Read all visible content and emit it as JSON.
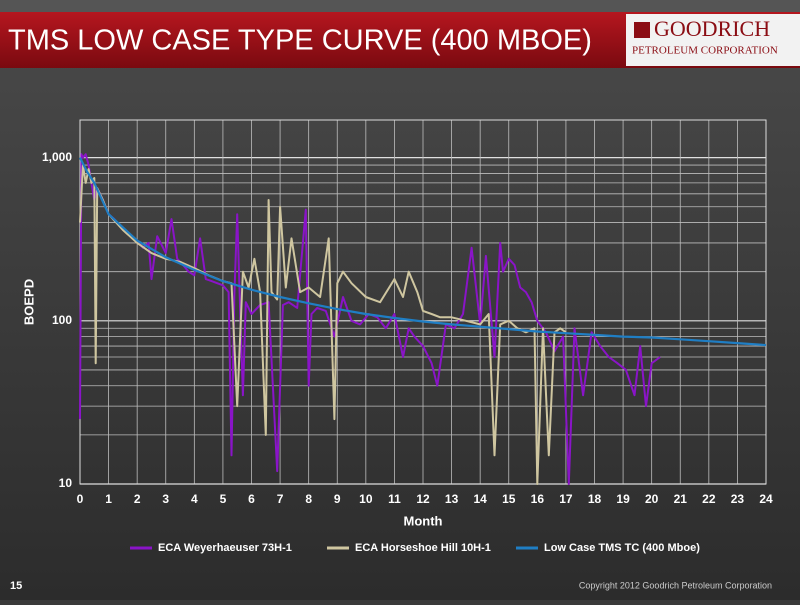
{
  "slide": {
    "title": "TMS LOW CASE TYPE CURVE (400 MBOE)",
    "logo_name": "GOODRICH",
    "logo_sub": "PETROLEUM CORPORATION",
    "page_number": "15",
    "copyright": "Copyright 2012 Goodrich Petroleum Corporation"
  },
  "chart_data": {
    "type": "line",
    "x_label": "Month",
    "y_label": "BOEPD",
    "log_y": true,
    "grid": true,
    "legend": "bottom",
    "xlim": [
      0,
      24
    ],
    "xticks": [
      0,
      1,
      2,
      3,
      4,
      5,
      6,
      7,
      8,
      9,
      10,
      11,
      12,
      13,
      14,
      15,
      16,
      17,
      18,
      19,
      20,
      21,
      22,
      23,
      24
    ],
    "ylim": [
      10,
      1700
    ],
    "yticks": [
      10,
      100,
      {
        "value": 1000,
        "label": "1,000"
      }
    ],
    "minor_yticks": [
      20,
      30,
      40,
      50,
      60,
      70,
      80,
      90,
      200,
      300,
      400,
      500,
      600,
      700,
      800,
      900
    ],
    "series": [
      {
        "name": "ECA Weyerhaeuser 73H-1",
        "color": "#8a14c8",
        "x": [
          0,
          0.05,
          0.1,
          0.2,
          0.3,
          0.4,
          0.5,
          0.6,
          0.7,
          0.8,
          1.0,
          1.2,
          1.4,
          1.6,
          1.8,
          2.0,
          2.2,
          2.4,
          2.5,
          2.7,
          3.0,
          3.2,
          3.4,
          3.6,
          3.8,
          4.0,
          4.2,
          4.4,
          4.6,
          4.8,
          5.0,
          5.2,
          5.3,
          5.4,
          5.5,
          5.6,
          5.7,
          5.8,
          6.0,
          6.3,
          6.6,
          6.9,
          7.1,
          7.3,
          7.6,
          7.9,
          8.0,
          8.1,
          8.3,
          8.6,
          8.9,
          9.2,
          9.5,
          9.8,
          10.1,
          10.4,
          10.7,
          11.0,
          11.3,
          11.5,
          11.7,
          12.0,
          12.3,
          12.5,
          12.8,
          13.1,
          13.4,
          13.7,
          14.0,
          14.2,
          14.5,
          14.7,
          14.8,
          15.0,
          15.2,
          15.4,
          15.6,
          15.8,
          16.0,
          16.3,
          16.6,
          16.9,
          17.1,
          17.3,
          17.6,
          17.9,
          18.2,
          18.5,
          18.8,
          19.1,
          19.4,
          19.6,
          19.8,
          20.0,
          20.3
        ],
        "values": [
          25,
          1050,
          1000,
          1050,
          900,
          700,
          550,
          650,
          600,
          550,
          450,
          420,
          380,
          350,
          330,
          310,
          280,
          300,
          180,
          330,
          260,
          420,
          240,
          220,
          200,
          190,
          320,
          180,
          175,
          170,
          165,
          150,
          15,
          140,
          450,
          120,
          35,
          130,
          110,
          125,
          130,
          12,
          125,
          130,
          120,
          480,
          40,
          110,
          120,
          115,
          80,
          140,
          100,
          95,
          110,
          105,
          90,
          110,
          60,
          90,
          80,
          70,
          55,
          40,
          95,
          90,
          110,
          280,
          95,
          250,
          60,
          300,
          200,
          240,
          220,
          160,
          150,
          130,
          100,
          85,
          65,
          80,
          10,
          90,
          35,
          85,
          70,
          60,
          55,
          50,
          35,
          70,
          30,
          55,
          60
        ]
      },
      {
        "name": "ECA Horseshoe Hill 10H-1",
        "color": "#cfc6a0",
        "x": [
          0,
          0.1,
          0.2,
          0.3,
          0.4,
          0.5,
          0.55,
          0.6,
          0.8,
          1.0,
          1.5,
          2.0,
          2.5,
          3.0,
          3.5,
          4.0,
          4.5,
          5.0,
          5.3,
          5.5,
          5.7,
          5.9,
          6.1,
          6.3,
          6.5,
          6.6,
          6.7,
          6.9,
          7.0,
          7.2,
          7.4,
          7.7,
          8.0,
          8.4,
          8.7,
          8.9,
          9.0,
          9.2,
          9.5,
          10.0,
          10.5,
          11.0,
          11.3,
          11.5,
          11.8,
          12.0,
          12.3,
          12.6,
          13.0,
          13.5,
          14.0,
          14.3,
          14.5,
          14.7,
          15.0,
          15.3,
          15.6,
          15.9,
          16.0,
          16.2,
          16.4,
          16.6,
          16.8,
          17.0
        ],
        "values": [
          400,
          900,
          700,
          850,
          700,
          750,
          55,
          650,
          550,
          450,
          360,
          300,
          260,
          240,
          230,
          210,
          190,
          175,
          170,
          30,
          200,
          160,
          240,
          150,
          20,
          550,
          150,
          135,
          500,
          160,
          320,
          150,
          160,
          140,
          320,
          25,
          170,
          200,
          170,
          140,
          130,
          180,
          140,
          200,
          150,
          115,
          110,
          105,
          105,
          100,
          95,
          110,
          15,
          95,
          100,
          90,
          85,
          90,
          10,
          90,
          15,
          85,
          90,
          85
        ]
      },
      {
        "name": "Low Case TMS TC (400 Mboe)",
        "color": "#1f7ec4",
        "x": [
          0,
          0.25,
          0.5,
          1,
          2,
          3,
          4,
          5,
          6,
          7,
          8,
          9,
          10,
          11,
          12,
          13,
          14,
          15,
          16,
          17,
          18,
          19,
          20,
          21,
          22,
          23,
          24
        ],
        "values": [
          1000,
          820,
          700,
          450,
          310,
          245,
          205,
          175,
          155,
          140,
          128,
          118,
          110,
          104,
          99,
          95,
          92,
          89,
          86,
          84,
          82,
          80,
          79,
          77,
          75,
          73,
          71
        ]
      }
    ]
  }
}
